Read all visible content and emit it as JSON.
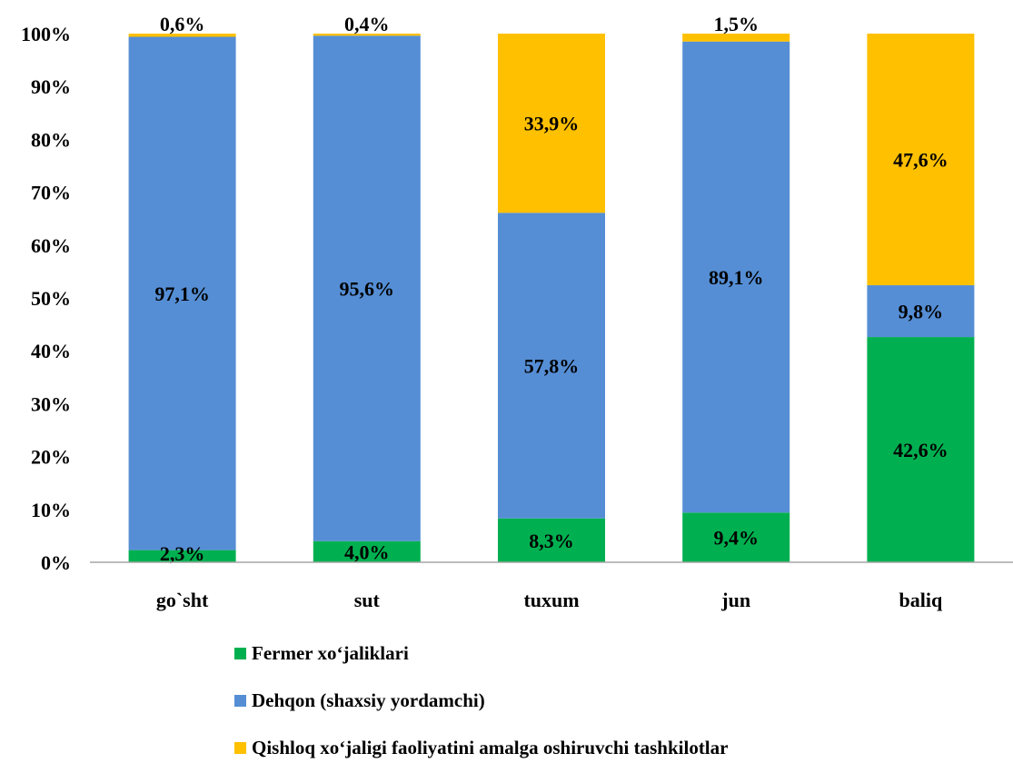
{
  "chart_data": {
    "type": "bar",
    "stacked": true,
    "categories": [
      "go`sht",
      "sut",
      "tuxum",
      "jun",
      "baliq"
    ],
    "series": [
      {
        "name": "Fermer xo‘jaliklari",
        "color": "#00B050",
        "values": [
          2.3,
          4.0,
          8.3,
          9.4,
          42.6
        ],
        "labels": [
          "2,3%",
          "4,0%",
          "8,3%",
          "9,4%",
          "42,6%"
        ]
      },
      {
        "name": "Dehqon (shaxsiy yordamchi)",
        "color": "#558ED5",
        "values": [
          97.1,
          95.6,
          57.8,
          89.1,
          9.8
        ],
        "labels": [
          "97,1%",
          "95,6%",
          "57,8%",
          "89,1%",
          "9,8%"
        ]
      },
      {
        "name": "Qishloq xo‘jaligi faoliyatini amalga oshiruvchi tashkilotlar",
        "color": "#FFC000",
        "values": [
          0.6,
          0.4,
          33.9,
          1.5,
          47.6
        ],
        "labels": [
          "0,6%",
          "0,4%",
          "33,9%",
          "1,5%",
          "47,6%"
        ]
      }
    ],
    "y_ticks": [
      "0%",
      "10%",
      "20%",
      "30%",
      "40%",
      "50%",
      "60%",
      "70%",
      "80%",
      "90%",
      "100%"
    ],
    "ylim": [
      0,
      100
    ],
    "grid": false,
    "legend_position": "bottom"
  }
}
